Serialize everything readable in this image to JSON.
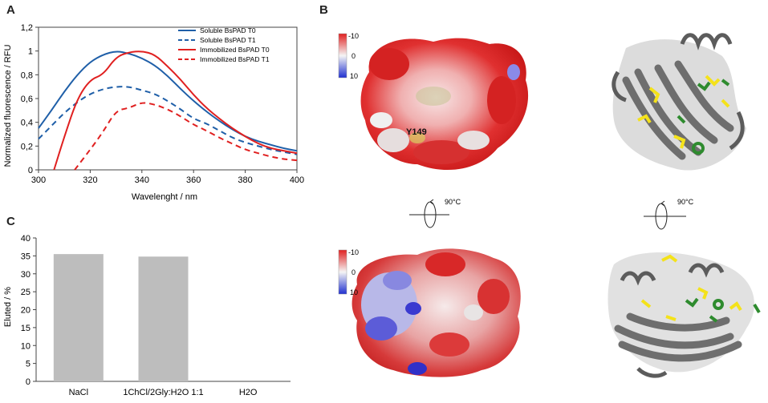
{
  "panels": {
    "a": "A",
    "b": "B",
    "c": "C"
  },
  "chart_data": [
    {
      "type": "line",
      "panel": "A",
      "xlabel": "Wavelenght / nm",
      "ylabel": "Normalized fluorescence / RFU",
      "xlim": [
        300,
        400
      ],
      "ylim": [
        0,
        1.2
      ],
      "xticks": [
        "300",
        "320",
        "340",
        "360",
        "380",
        "400"
      ],
      "yticks": [
        "0",
        "0,2",
        "0,4",
        "0,6",
        "0,8",
        "1",
        "1,2"
      ],
      "legend_position": "top-right",
      "series": [
        {
          "name": "Soluble BsPAD  T0",
          "color": "#1f5fa8",
          "dash": "solid",
          "x": [
            300,
            305,
            310,
            315,
            320,
            325,
            330,
            335,
            340,
            345,
            350,
            355,
            360,
            365,
            370,
            375,
            380,
            385,
            390,
            395,
            400
          ],
          "y": [
            0.35,
            0.5,
            0.66,
            0.8,
            0.91,
            0.97,
            1.0,
            0.98,
            0.94,
            0.88,
            0.79,
            0.68,
            0.58,
            0.49,
            0.41,
            0.34,
            0.28,
            0.24,
            0.21,
            0.18,
            0.16
          ]
        },
        {
          "name": "Soluble BsPAD  T1",
          "color": "#1f5fa8",
          "dash": "dashed",
          "x": [
            300,
            305,
            310,
            315,
            320,
            325,
            330,
            335,
            340,
            345,
            350,
            355,
            360,
            365,
            370,
            375,
            380,
            385,
            390,
            395,
            400
          ],
          "y": [
            0.26,
            0.37,
            0.48,
            0.57,
            0.64,
            0.68,
            0.7,
            0.7,
            0.67,
            0.64,
            0.58,
            0.51,
            0.43,
            0.39,
            0.33,
            0.27,
            0.23,
            0.2,
            0.17,
            0.15,
            0.13
          ]
        },
        {
          "name": "Immobilized BsPAD  T0",
          "color": "#e02020",
          "dash": "solid",
          "x": [
            306,
            310,
            315,
            320,
            325,
            330,
            335,
            340,
            345,
            350,
            355,
            360,
            365,
            370,
            375,
            380,
            385,
            390,
            395,
            400
          ],
          "y": [
            0.0,
            0.28,
            0.6,
            0.76,
            0.8,
            0.95,
            0.99,
            1.0,
            0.97,
            0.87,
            0.76,
            0.63,
            0.52,
            0.43,
            0.35,
            0.28,
            0.22,
            0.18,
            0.16,
            0.14
          ]
        },
        {
          "name": "Immobilized BsPAD  T1",
          "color": "#e02020",
          "dash": "dashed",
          "x": [
            314,
            320,
            325,
            330,
            335,
            340,
            345,
            350,
            355,
            360,
            365,
            370,
            375,
            380,
            385,
            390,
            395,
            400
          ],
          "y": [
            0.0,
            0.17,
            0.32,
            0.5,
            0.52,
            0.57,
            0.55,
            0.51,
            0.45,
            0.38,
            0.33,
            0.27,
            0.22,
            0.17,
            0.14,
            0.11,
            0.09,
            0.08
          ]
        }
      ]
    },
    {
      "type": "bar",
      "panel": "C",
      "categories": [
        "NaCl",
        "1ChCl/2Gly:H2O 1:1",
        "H2O"
      ],
      "values": [
        35.5,
        34.8,
        0
      ],
      "ylabel": "Eluted / %",
      "xlabel": "",
      "ylim": [
        0,
        40
      ],
      "yticks": [
        "0",
        "5",
        "10",
        "15",
        "20",
        "25",
        "30",
        "35",
        "40"
      ],
      "bar_color": "#bdbdbd",
      "grid": false
    }
  ],
  "structures": {
    "residue_label": "Y149",
    "rotation_label_left": "90°C",
    "rotation_label_right": "90°C",
    "scale_top": {
      "max": "-10",
      "mid": "0",
      "min": "10"
    },
    "scale_bottom": {
      "max": "-10",
      "mid": "0",
      "min": "10"
    },
    "colors": {
      "negative": "#e02020",
      "positive": "#2020d0",
      "neutral": "#f2f2f2",
      "ribbon": "#6e6e6e",
      "sticks_yellow": "#f4e21a",
      "sticks_green": "#2e8b2e"
    }
  }
}
